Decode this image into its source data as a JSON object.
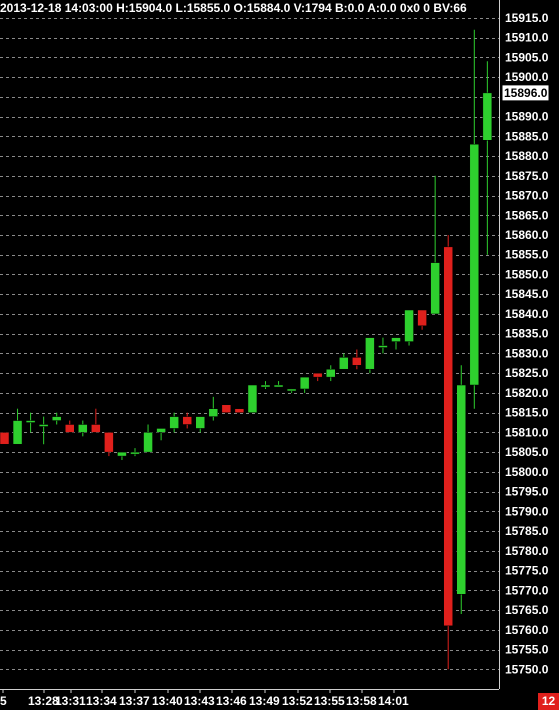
{
  "info_bar": {
    "datetime": "2013-12-18 14:03:00",
    "high": "H:15904.0",
    "low": "L:15855.0",
    "open": "O:15884.0",
    "volume": "V:1794",
    "bid": "B:0.0",
    "ask": "A:0.0",
    "size": "0x0",
    "zero": "0",
    "bid_volume": "BV:66"
  },
  "badge": "12",
  "colors": {
    "background": "#000000",
    "up": "#2ed02e",
    "down": "#e0201c",
    "grid": "#8a8a8a",
    "axis_text": "#ffffff"
  },
  "chart_data": {
    "type": "candlestick",
    "ylim": [
      15745,
      15917.5
    ],
    "y_tick_labels": [
      "15915.0",
      "15910.0",
      "15905.0",
      "15900.0",
      "15890.0",
      "15885.0",
      "15880.0",
      "15875.0",
      "15870.0",
      "15865.0",
      "15860.0",
      "15855.0",
      "15850.0",
      "15845.0",
      "15840.0",
      "15835.0",
      "15830.0",
      "15825.0",
      "15820.0",
      "15815.0",
      "15810.0",
      "15805.0",
      "15800.0",
      "15795.0",
      "15790.0",
      "15785.0",
      "15780.0",
      "15775.0",
      "15770.0",
      "15765.0",
      "15760.0",
      "15755.0",
      "15750.0"
    ],
    "current_price_label": "15896.0",
    "x_tick_labels": [
      "5",
      "13:28",
      "13:31",
      "13:34",
      "13:37",
      "13:40",
      "13:43",
      "13:46",
      "13:49",
      "13:52",
      "13:55",
      "13:58",
      "14:01"
    ],
    "candles": [
      {
        "o": 15810,
        "h": 15810,
        "l": 15807,
        "c": 15807
      },
      {
        "o": 15807,
        "h": 15816,
        "l": 15807,
        "c": 15813
      },
      {
        "o": 15813,
        "h": 15815,
        "l": 15810,
        "c": 15813
      },
      {
        "o": 15812,
        "h": 15814,
        "l": 15807,
        "c": 15812
      },
      {
        "o": 15813,
        "h": 15815,
        "l": 15812,
        "c": 15814
      },
      {
        "o": 15812,
        "h": 15813,
        "l": 15810,
        "c": 15810
      },
      {
        "o": 15810,
        "h": 15813,
        "l": 15809,
        "c": 15812
      },
      {
        "o": 15812,
        "h": 15816,
        "l": 15810,
        "c": 15810
      },
      {
        "o": 15810,
        "h": 15810,
        "l": 15804,
        "c": 15805
      },
      {
        "o": 15804,
        "h": 15805,
        "l": 15803,
        "c": 15805
      },
      {
        "o": 15805,
        "h": 15806,
        "l": 15804,
        "c": 15805
      },
      {
        "o": 15805,
        "h": 15812,
        "l": 15805,
        "c": 15810
      },
      {
        "o": 15810,
        "h": 15811,
        "l": 15808,
        "c": 15811
      },
      {
        "o": 15811,
        "h": 15815,
        "l": 15810,
        "c": 15814
      },
      {
        "o": 15814,
        "h": 15815,
        "l": 15811,
        "c": 15812
      },
      {
        "o": 15811,
        "h": 15814,
        "l": 15810,
        "c": 15814
      },
      {
        "o": 15814,
        "h": 15819,
        "l": 15813,
        "c": 15816
      },
      {
        "o": 15817,
        "h": 15817,
        "l": 15815,
        "c": 15815
      },
      {
        "o": 15816,
        "h": 15816,
        "l": 15815,
        "c": 15815
      },
      {
        "o": 15815,
        "h": 15822,
        "l": 15815,
        "c": 15822
      },
      {
        "o": 15822,
        "h": 15823,
        "l": 15821,
        "c": 15822
      },
      {
        "o": 15822,
        "h": 15823,
        "l": 15822,
        "c": 15822
      },
      {
        "o": 15821,
        "h": 15821,
        "l": 15820,
        "c": 15821
      },
      {
        "o": 15821,
        "h": 15824,
        "l": 15820,
        "c": 15824
      },
      {
        "o": 15825,
        "h": 15825,
        "l": 15823,
        "c": 15824
      },
      {
        "o": 15824,
        "h": 15827,
        "l": 15823,
        "c": 15826
      },
      {
        "o": 15826,
        "h": 15830,
        "l": 15826,
        "c": 15829
      },
      {
        "o": 15829,
        "h": 15831,
        "l": 15826,
        "c": 15827
      },
      {
        "o": 15826,
        "h": 15834,
        "l": 15825,
        "c": 15834
      },
      {
        "o": 15832,
        "h": 15834,
        "l": 15830,
        "c": 15832
      },
      {
        "o": 15833,
        "h": 15834,
        "l": 15831,
        "c": 15834
      },
      {
        "o": 15833,
        "h": 15841,
        "l": 15832,
        "c": 15841
      },
      {
        "o": 15841,
        "h": 15841,
        "l": 15836,
        "c": 15837
      },
      {
        "o": 15840,
        "h": 15875,
        "l": 15840,
        "c": 15853
      },
      {
        "o": 15857,
        "h": 15860,
        "l": 15750,
        "c": 15761
      },
      {
        "o": 15769,
        "h": 15827,
        "l": 15764,
        "c": 15822
      },
      {
        "o": 15822,
        "h": 15912,
        "l": 15816,
        "c": 15883
      },
      {
        "o": 15884,
        "h": 15904,
        "l": 15855,
        "c": 15896
      }
    ]
  }
}
